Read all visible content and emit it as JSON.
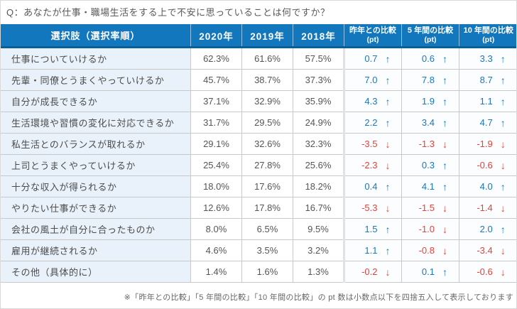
{
  "title": "Q：あなたが仕事・職場生活をする上で不安に思っていることは何ですか？",
  "icons": {
    "up_arrow": "↑",
    "down_arrow": "↓"
  },
  "colors": {
    "header_bg": "#1277bd",
    "header_border_bottom": "#0b5f95",
    "positive_blue": "#1878bd",
    "negative_red": "#e8413a",
    "label_cell_bg": "#e9f2fa",
    "grid_border": "#c9c9c9"
  },
  "chart_data": {
    "type": "table",
    "title": "Q：あなたが仕事・職場生活をする上で不安に思っていることは何ですか？",
    "columns": [
      {
        "label": "選択肢（選択率順）",
        "sub": ""
      },
      {
        "label": "2020年",
        "sub": ""
      },
      {
        "label": "2019年",
        "sub": ""
      },
      {
        "label": "2018年",
        "sub": ""
      },
      {
        "label": "昨年との比較",
        "sub": "(pt)"
      },
      {
        "label": "5 年間の比較",
        "sub": "(pt)"
      },
      {
        "label": "10 年間の比較",
        "sub": "(pt)"
      }
    ],
    "rows": [
      {
        "label": "仕事についていけるか",
        "values": [
          "62.3%",
          "61.6%",
          "57.5%"
        ],
        "comparisons": [
          {
            "value": "0.7",
            "dir": "up"
          },
          {
            "value": "0.6",
            "dir": "up"
          },
          {
            "value": "3.3",
            "dir": "up"
          }
        ]
      },
      {
        "label": "先輩・同僚とうまくやっていけるか",
        "values": [
          "45.7%",
          "38.7%",
          "37.3%"
        ],
        "comparisons": [
          {
            "value": "7.0",
            "dir": "up"
          },
          {
            "value": "7.8",
            "dir": "up"
          },
          {
            "value": "8.7",
            "dir": "up"
          }
        ]
      },
      {
        "label": "自分が成長できるか",
        "values": [
          "37.1%",
          "32.9%",
          "35.9%"
        ],
        "comparisons": [
          {
            "value": "4.3",
            "dir": "up"
          },
          {
            "value": "1.9",
            "dir": "up"
          },
          {
            "value": "1.1",
            "dir": "up"
          }
        ]
      },
      {
        "label": "生活環境や習慣の変化に対応できるか",
        "values": [
          "31.7%",
          "29.5%",
          "24.9%"
        ],
        "comparisons": [
          {
            "value": "2.2",
            "dir": "up"
          },
          {
            "value": "3.4",
            "dir": "up"
          },
          {
            "value": "4.7",
            "dir": "up"
          }
        ]
      },
      {
        "label": "私生活とのバランスが取れるか",
        "values": [
          "29.1%",
          "32.6%",
          "32.3%"
        ],
        "comparisons": [
          {
            "value": "-3.5",
            "dir": "down"
          },
          {
            "value": "-1.3",
            "dir": "down"
          },
          {
            "value": "-1.9",
            "dir": "down"
          }
        ]
      },
      {
        "label": "上司とうまくやっていけるか",
        "values": [
          "25.4%",
          "27.8%",
          "25.6%"
        ],
        "comparisons": [
          {
            "value": "-2.3",
            "dir": "down"
          },
          {
            "value": "0.3",
            "dir": "up"
          },
          {
            "value": "-0.6",
            "dir": "down"
          }
        ]
      },
      {
        "label": "十分な収入が得られるか",
        "values": [
          "18.0%",
          "17.6%",
          "18.2%"
        ],
        "comparisons": [
          {
            "value": "0.4",
            "dir": "up"
          },
          {
            "value": "4.1",
            "dir": "up"
          },
          {
            "value": "4.0",
            "dir": "up"
          }
        ]
      },
      {
        "label": "やりたい仕事ができるか",
        "values": [
          "12.6%",
          "17.8%",
          "16.7%"
        ],
        "comparisons": [
          {
            "value": "-5.3",
            "dir": "down"
          },
          {
            "value": "-1.5",
            "dir": "down"
          },
          {
            "value": "-1.4",
            "dir": "down"
          }
        ]
      },
      {
        "label": "会社の風土が自分に合ったものか",
        "values": [
          "8.0%",
          "6.5%",
          "9.5%"
        ],
        "comparisons": [
          {
            "value": "1.5",
            "dir": "up"
          },
          {
            "value": "-1.0",
            "dir": "down"
          },
          {
            "value": "2.0",
            "dir": "up"
          }
        ]
      },
      {
        "label": "雇用が継続されるか",
        "values": [
          "4.6%",
          "3.5%",
          "3.2%"
        ],
        "comparisons": [
          {
            "value": "1.1",
            "dir": "up"
          },
          {
            "value": "-0.8",
            "dir": "down"
          },
          {
            "value": "-3.4",
            "dir": "down"
          }
        ]
      },
      {
        "label": "その他（具体的に）",
        "values": [
          "1.4%",
          "1.6%",
          "1.3%"
        ],
        "comparisons": [
          {
            "value": "-0.2",
            "dir": "down"
          },
          {
            "value": "0.1",
            "dir": "up"
          },
          {
            "value": "-0.6",
            "dir": "down"
          }
        ]
      }
    ],
    "footnote": "※「昨年との比較」「5 年間の比較」「10 年間の比較」の pt 数は小数点以下を四捨五入して表示しております"
  }
}
